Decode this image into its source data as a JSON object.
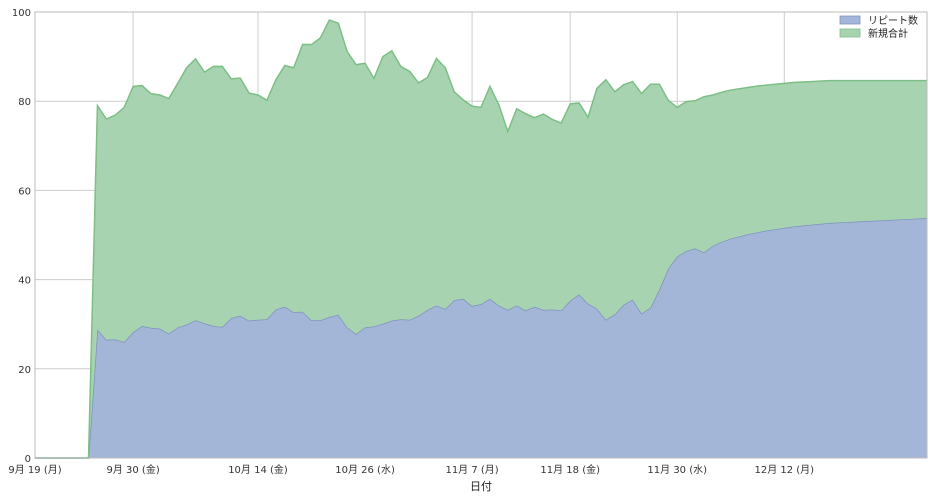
{
  "chart_data": {
    "type": "area",
    "stacked": true,
    "xlabel": "日付",
    "ylabel": "",
    "ylim": [
      0,
      100
    ],
    "yticks": [
      0,
      20,
      40,
      60,
      80,
      100
    ],
    "xticks": [
      {
        "date": "2016-09-19",
        "label": "9月 19 (月)"
      },
      {
        "date": "2016-09-30",
        "label": "9月 30 (金)"
      },
      {
        "date": "2016-10-14",
        "label": "10月 14 (金)"
      },
      {
        "date": "2016-10-26",
        "label": "10月 26 (水)"
      },
      {
        "date": "2016-11-07",
        "label": "11月 7 (月)"
      },
      {
        "date": "2016-11-18",
        "label": "11月 18 (金)"
      },
      {
        "date": "2016-11-30",
        "label": "11月 30 (水)"
      },
      {
        "date": "2016-12-12",
        "label": "12月 12 (月)"
      }
    ],
    "xlim": [
      "2016-09-19",
      "2016-12-28"
    ],
    "grid": true,
    "legend_position": "top-right",
    "x": [
      "2016-09-19",
      "2016-09-20",
      "2016-09-21",
      "2016-09-22",
      "2016-09-23",
      "2016-09-24",
      "2016-09-25",
      "2016-09-26",
      "2016-09-27",
      "2016-09-28",
      "2016-09-29",
      "2016-09-30",
      "2016-10-01",
      "2016-10-02",
      "2016-10-03",
      "2016-10-04",
      "2016-10-05",
      "2016-10-06",
      "2016-10-07",
      "2016-10-08",
      "2016-10-09",
      "2016-10-10",
      "2016-10-11",
      "2016-10-12",
      "2016-10-13",
      "2016-10-14",
      "2016-10-15",
      "2016-10-16",
      "2016-10-17",
      "2016-10-18",
      "2016-10-19",
      "2016-10-20",
      "2016-10-21",
      "2016-10-22",
      "2016-10-23",
      "2016-10-24",
      "2016-10-25",
      "2016-10-26",
      "2016-10-27",
      "2016-10-28",
      "2016-10-29",
      "2016-10-30",
      "2016-10-31",
      "2016-11-01",
      "2016-11-02",
      "2016-11-03",
      "2016-11-04",
      "2016-11-05",
      "2016-11-06",
      "2016-11-07",
      "2016-11-08",
      "2016-11-09",
      "2016-11-10",
      "2016-11-11",
      "2016-11-12",
      "2016-11-13",
      "2016-11-14",
      "2016-11-15",
      "2016-11-16",
      "2016-11-17",
      "2016-11-18",
      "2016-11-19",
      "2016-11-20",
      "2016-11-21",
      "2016-11-22",
      "2016-11-23",
      "2016-11-24",
      "2016-11-25",
      "2016-11-26",
      "2016-11-27",
      "2016-11-28",
      "2016-11-29",
      "2016-11-30",
      "2016-12-01",
      "2016-12-02",
      "2016-12-03",
      "2016-12-04",
      "2016-12-05",
      "2016-12-06",
      "2016-12-07",
      "2016-12-08",
      "2016-12-09",
      "2016-12-10",
      "2016-12-11",
      "2016-12-12",
      "2016-12-13",
      "2016-12-14",
      "2016-12-15",
      "2016-12-16",
      "2016-12-17",
      "2016-12-18",
      "2016-12-19",
      "2016-12-20",
      "2016-12-21",
      "2016-12-22",
      "2016-12-23",
      "2016-12-24",
      "2016-12-25",
      "2016-12-26",
      "2016-12-27",
      "2016-12-28"
    ],
    "series": [
      {
        "name": "リピート数",
        "color": "#a4b6d8",
        "line_color": "#7d93bf",
        "values": [
          0,
          0,
          0,
          0,
          0,
          0,
          0,
          28.8,
          26.5,
          26.6,
          26.0,
          28.2,
          29.6,
          29.2,
          29.0,
          27.9,
          29.3,
          29.9,
          30.9,
          30.2,
          29.6,
          29.4,
          31.4,
          31.9,
          30.8,
          31.0,
          31.1,
          33.3,
          33.9,
          32.7,
          32.8,
          30.9,
          30.9,
          31.6,
          32.1,
          29.3,
          27.8,
          29.3,
          29.5,
          30.1,
          30.8,
          31.1,
          31.0,
          31.9,
          33.2,
          34.2,
          33.4,
          35.4,
          35.7,
          34.1,
          34.5,
          35.7,
          34.2,
          33.2,
          34.2,
          33.1,
          33.9,
          33.2,
          33.3,
          33.1,
          35.3,
          36.7,
          34.6,
          33.5,
          31.0,
          32.2,
          34.4,
          35.5,
          32.4,
          33.7,
          37.8,
          42.5,
          45.2,
          46.4,
          47.0,
          46.1,
          47.6,
          48.5,
          49.2,
          49.7,
          50.2,
          50.6,
          51.0,
          51.3,
          51.6,
          51.9,
          52.1,
          52.3,
          52.5,
          52.7,
          52.8,
          52.9,
          53.0,
          53.1,
          53.2,
          53.3,
          53.4,
          53.5,
          53.6,
          53.7,
          53.8
        ]
      },
      {
        "name": "新規合計",
        "color": "#a8d3b0",
        "line_color": "#7cbf86",
        "values": [
          0,
          0,
          0,
          0,
          0,
          0,
          0,
          50.2,
          49.5,
          50.3,
          52.6,
          55.1,
          53.9,
          52.5,
          52.4,
          52.7,
          54.7,
          57.6,
          58.6,
          56.3,
          58.2,
          58.4,
          53.6,
          53.3,
          51.0,
          50.4,
          49.1,
          51.5,
          54.1,
          54.8,
          59.9,
          61.8,
          63.3,
          66.6,
          65.4,
          61.8,
          60.4,
          59.2,
          55.6,
          59.9,
          60.5,
          56.7,
          55.7,
          52.2,
          52.1,
          55.4,
          54.1,
          46.7,
          44.6,
          44.8,
          44.1,
          47.6,
          45.0,
          40.0,
          44.1,
          44.1,
          42.4,
          43.9,
          42.6,
          42.0,
          44.1,
          42.9,
          41.8,
          49.4,
          53.8,
          49.9,
          49.3,
          48.9,
          49.3,
          50.1,
          46.0,
          37.7,
          33.4,
          33.5,
          33.1,
          34.9,
          33.8,
          33.5,
          33.3,
          33.1,
          32.9,
          32.8,
          32.6,
          32.5,
          32.4,
          32.3,
          32.2,
          32.1,
          32.0,
          31.9,
          31.8,
          31.7,
          31.6,
          31.5,
          31.4,
          31.3,
          31.2,
          31.1,
          31.0,
          30.9,
          30.8
        ]
      }
    ]
  }
}
